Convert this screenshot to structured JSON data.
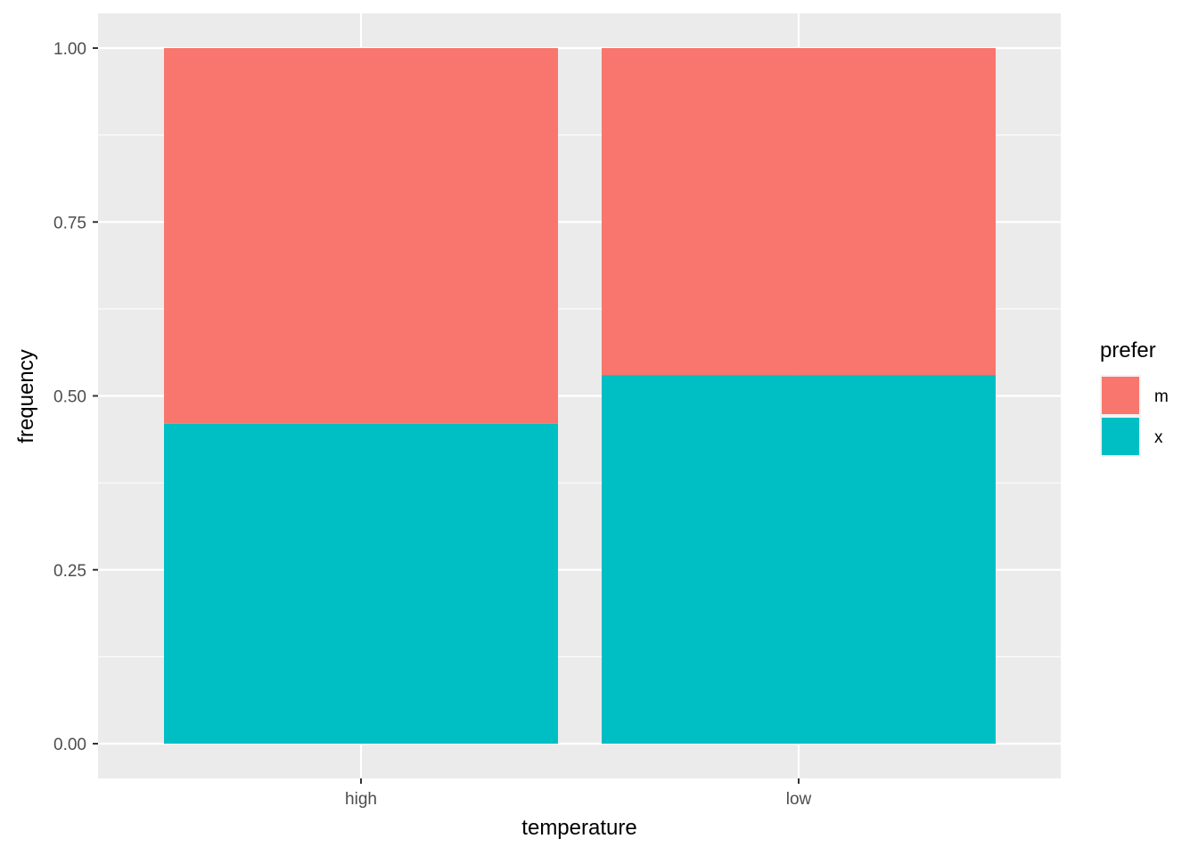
{
  "chart_data": {
    "type": "bar",
    "stacked": true,
    "categories": [
      "high",
      "low"
    ],
    "series": [
      {
        "name": "x",
        "values": [
          0.46,
          0.53
        ],
        "color": "#00BFC4"
      },
      {
        "name": "m",
        "values": [
          0.54,
          0.47
        ],
        "color": "#F8766D"
      }
    ],
    "xlabel": "temperature",
    "ylabel": "frequency",
    "ylim": [
      0,
      1
    ],
    "yticks": [
      0,
      0.25,
      0.5,
      0.75,
      1
    ],
    "ytick_labels": [
      "0.00",
      "0.25",
      "0.50",
      "0.75",
      "1.00"
    ],
    "grid": true,
    "legend": {
      "title": "prefer",
      "placement": "right",
      "entries": [
        {
          "label": "m",
          "color": "#F8766D"
        },
        {
          "label": "x",
          "color": "#00BFC4"
        }
      ]
    },
    "panel_background": "#EBEBEB",
    "grid_color": "#FFFFFF"
  }
}
